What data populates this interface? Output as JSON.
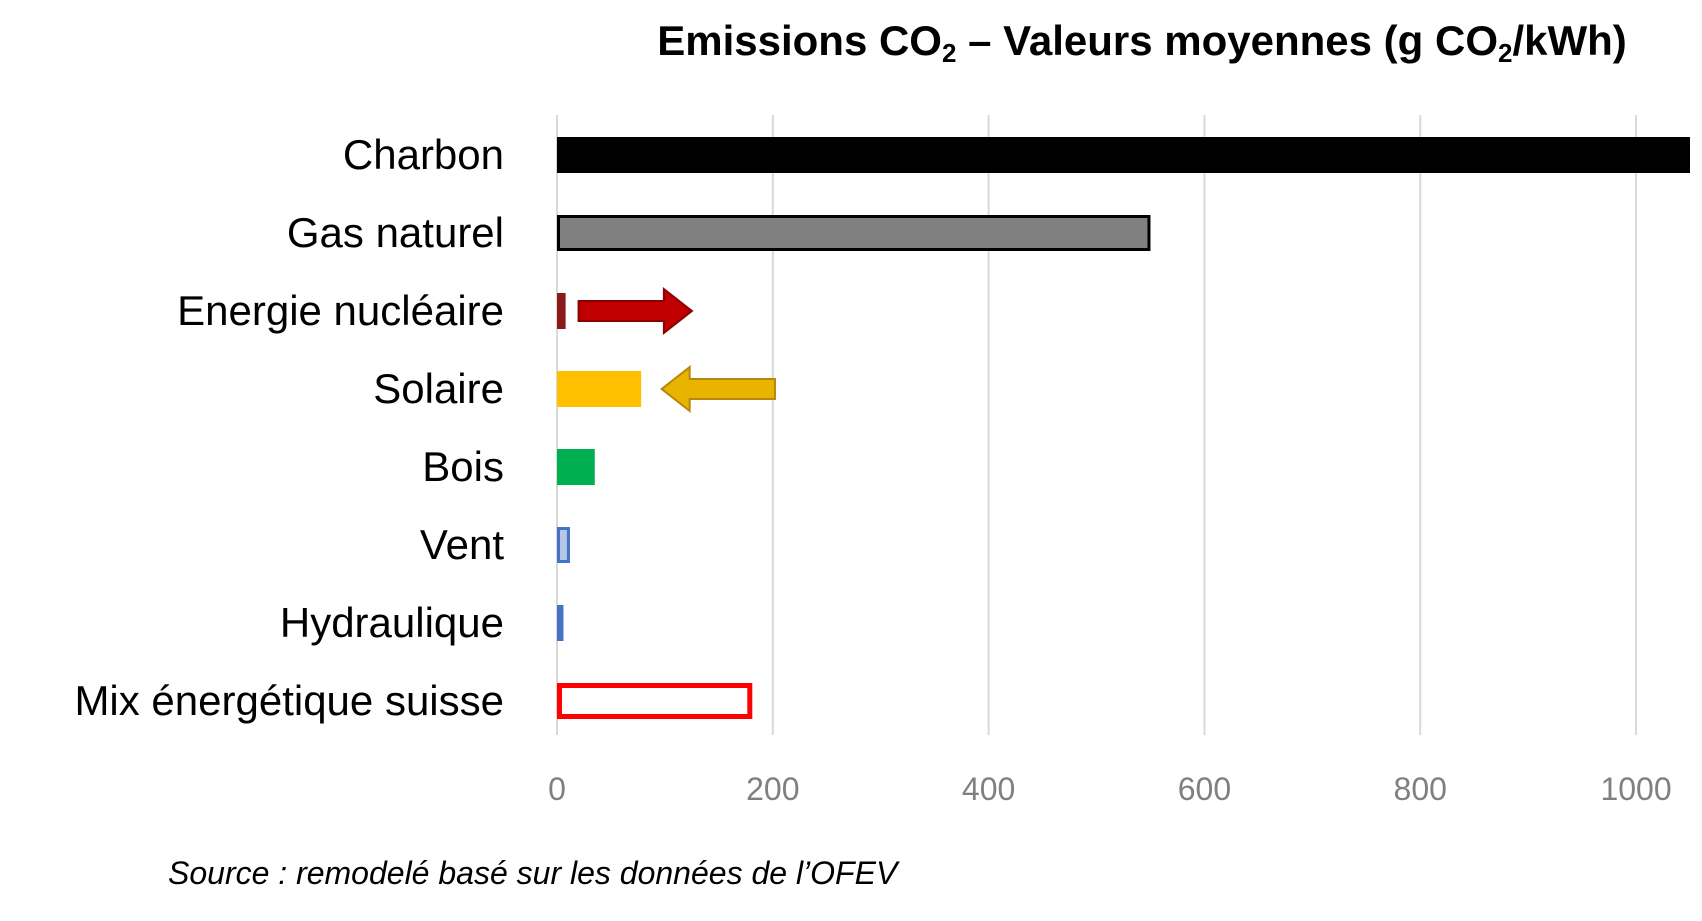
{
  "chart_data": {
    "type": "bar",
    "orientation": "horizontal",
    "title_parts": {
      "part1": "Emissions CO",
      "sub1": "2",
      "part2": " – Valeurs moyennes (g CO",
      "sub2": "2",
      "part3": "/kWh)"
    },
    "categories": [
      "Charbon",
      "Gas naturel",
      "Energie nucléaire",
      "Solaire",
      "Bois",
      "Vent",
      "Hydraulique",
      "Mix énergétique suisse"
    ],
    "values": [
      1050,
      550,
      8,
      78,
      35,
      12,
      6,
      181
    ],
    "bar_fill": [
      "#000000",
      "#808080",
      "#8b1a1a",
      "#ffc000",
      "#00b050",
      "#b4c7e7",
      "#4472c4",
      "#ffffff"
    ],
    "bar_stroke": [
      "#000000",
      "#000000",
      "#8b1a1a",
      "#ffc000",
      "#00b050",
      "#4472c4",
      "#4472c4",
      "#ff0000"
    ],
    "xlim": [
      0,
      1050
    ],
    "x_ticks": [
      "0",
      "200",
      "400",
      "600",
      "800",
      "1000"
    ],
    "x_tick_values": [
      0,
      200,
      400,
      600,
      800,
      1000
    ],
    "grid": true,
    "arrow_colors": {
      "nuclear": "#c00000",
      "solar": "#e8b400"
    },
    "annotations": [
      {
        "type": "arrow",
        "category": "Energie nucléaire",
        "direction": "right",
        "from_value": 20,
        "to_value": 125
      },
      {
        "type": "arrow",
        "category": "Solaire",
        "direction": "left",
        "from_value": 202,
        "to_value": 97
      }
    ],
    "source": "Source : remodelé basé sur les données de l’OFEV"
  }
}
